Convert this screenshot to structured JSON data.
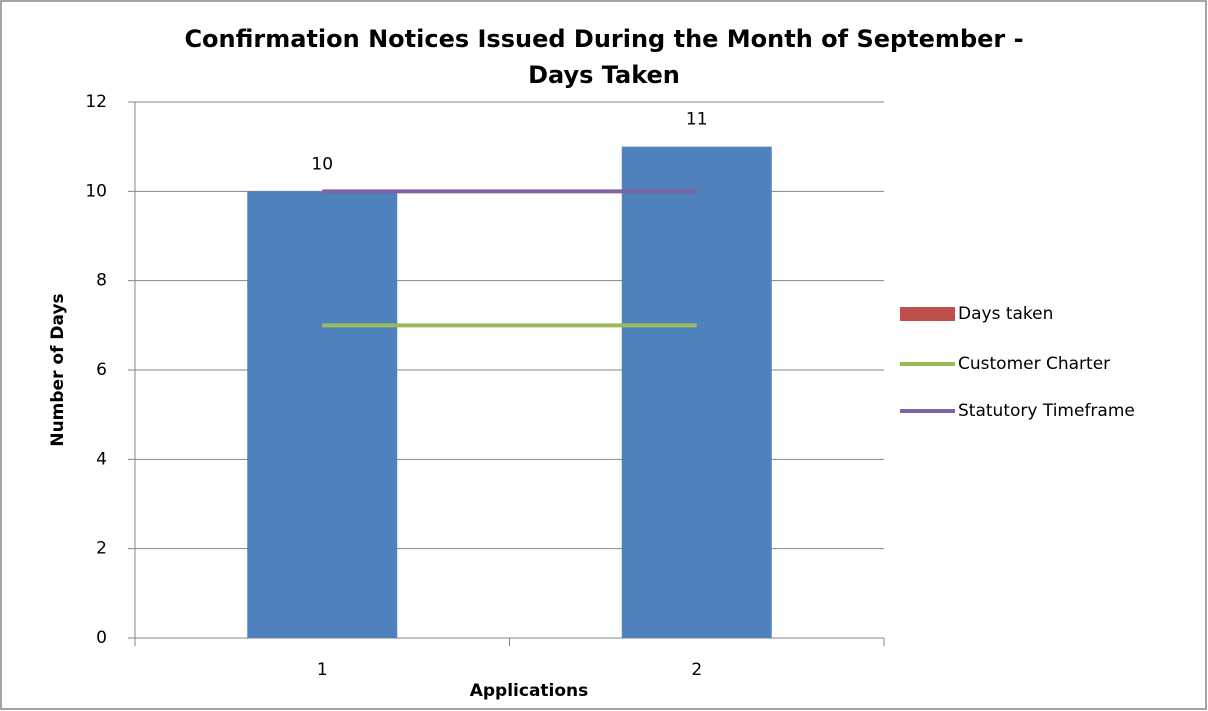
{
  "chart_data": {
    "type": "bar",
    "title": [
      "Confirmation Notices Issued During the Month of September -",
      "Days Taken"
    ],
    "xlabel": "Applications",
    "ylabel": "Number of Days",
    "categories": [
      "1",
      "2"
    ],
    "series": [
      {
        "name": "Days taken",
        "type": "bar",
        "color": "#4f81bd",
        "legend_color": "#c0504d",
        "values": [
          10,
          11
        ]
      },
      {
        "name": "Customer Charter",
        "type": "line",
        "color": "#9bbb59",
        "values": [
          7,
          7
        ]
      },
      {
        "name": "Statutory Timeframe",
        "type": "line",
        "color": "#8064a2",
        "values": [
          10,
          10
        ]
      }
    ],
    "ylim": [
      0,
      12
    ],
    "yticks": [
      0,
      2,
      4,
      6,
      8,
      10,
      12
    ],
    "grid": true,
    "legend": "right"
  }
}
